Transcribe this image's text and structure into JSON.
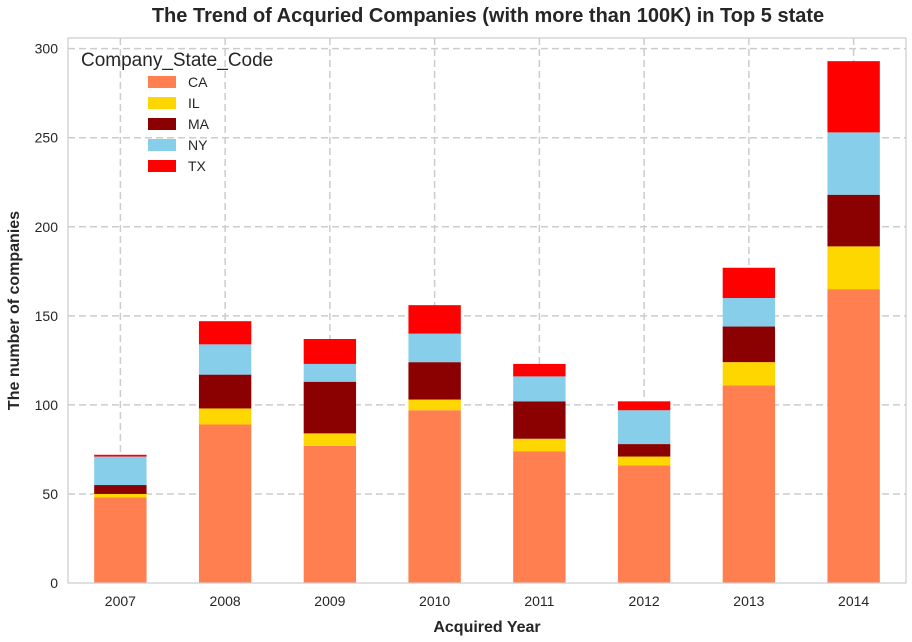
{
  "chart_data": {
    "type": "bar",
    "stacked": true,
    "title": "The Trend of Acquried Companies (with more than 100K) in Top 5 state",
    "xlabel": "Acquired Year",
    "ylabel": "The number of companies",
    "categories": [
      "2007",
      "2008",
      "2009",
      "2010",
      "2011",
      "2012",
      "2013",
      "2014"
    ],
    "ylim": [
      0,
      306
    ],
    "yticks": [
      0,
      50,
      100,
      150,
      200,
      250,
      300
    ],
    "grid": true,
    "legend": {
      "title": "Company_State_Code",
      "placement": "top-left"
    },
    "series": [
      {
        "name": "CA",
        "color": "#ff7f50",
        "values": [
          48,
          89,
          77,
          97,
          74,
          66,
          111,
          165
        ]
      },
      {
        "name": "IL",
        "color": "#ffd700",
        "values": [
          2,
          9,
          7,
          6,
          7,
          5,
          13,
          24
        ]
      },
      {
        "name": "MA",
        "color": "#8b0000",
        "values": [
          5,
          19,
          29,
          21,
          21,
          7,
          20,
          29
        ]
      },
      {
        "name": "NY",
        "color": "#87ceeb",
        "values": [
          16,
          17,
          10,
          16,
          14,
          19,
          16,
          35
        ]
      },
      {
        "name": "TX",
        "color": "#ff0000",
        "values": [
          1,
          13,
          14,
          16,
          7,
          5,
          17,
          40
        ]
      }
    ]
  }
}
